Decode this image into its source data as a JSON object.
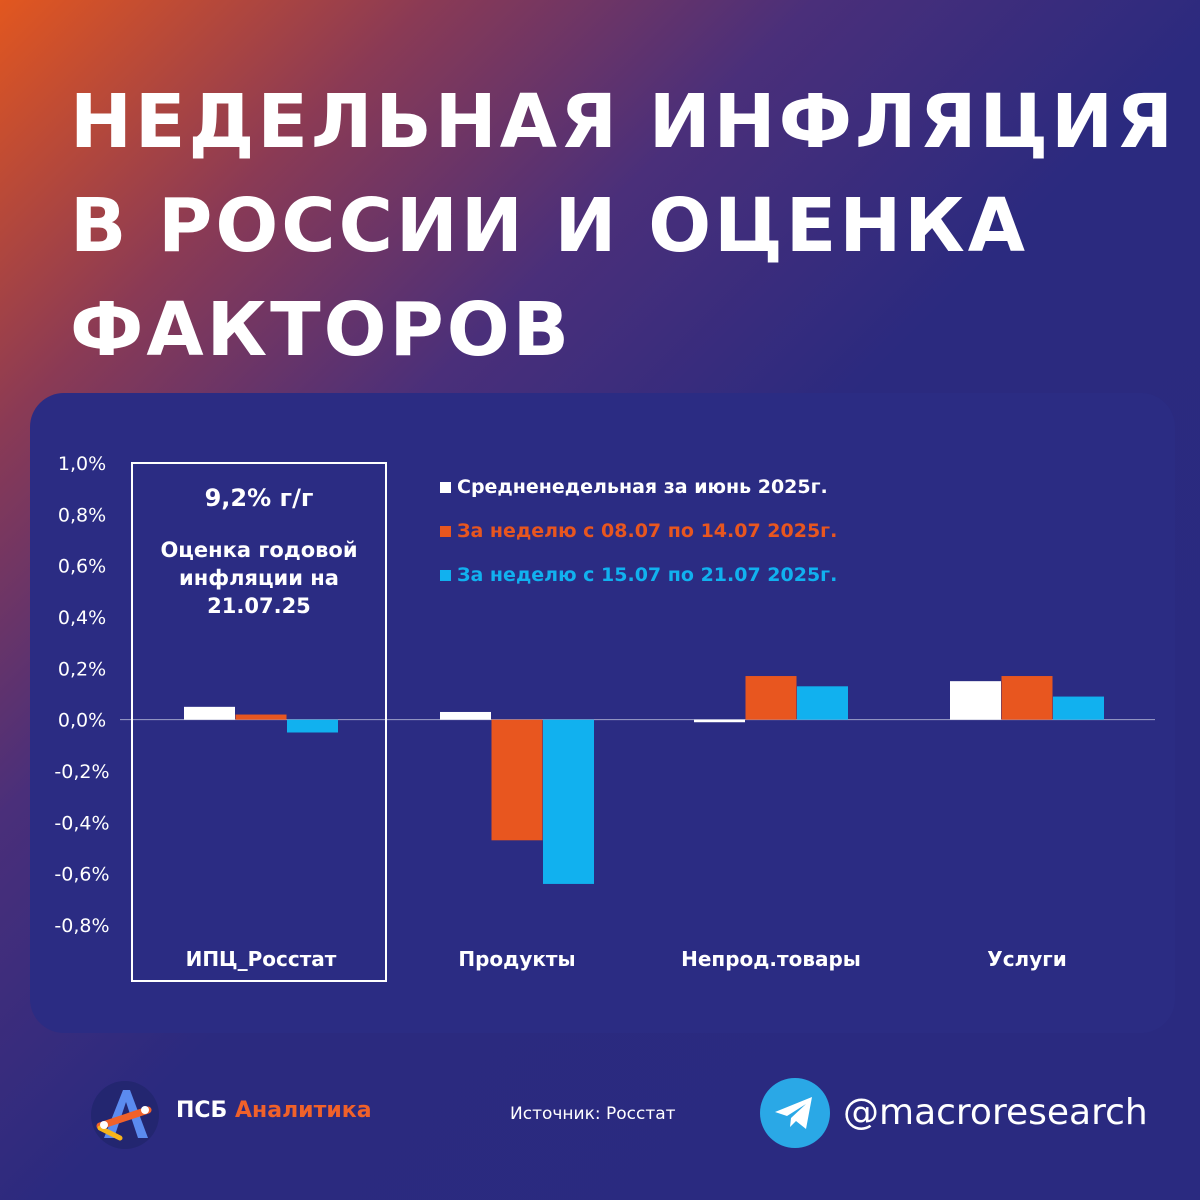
{
  "title_lines": [
    "НЕДЕЛЬНАЯ ИНФЛЯЦИЯ",
    "В РОССИИ И ОЦЕНКА",
    "ФАКТОРОВ"
  ],
  "cpi_box": {
    "annual": "9,2% г/г",
    "note_lines": [
      "Оценка годовой",
      "инфляции на",
      "21.07.25"
    ]
  },
  "colors": {
    "june": "#ffffff",
    "week1": "#e8561f",
    "week2": "#11b1ef",
    "card": "#2b2c83",
    "brand_accent": "#f0612a"
  },
  "chart_data": {
    "type": "bar",
    "categories": [
      "ИПЦ_Росстат",
      "Продукты",
      "Непрод.товары",
      "Услуги"
    ],
    "series": [
      {
        "name": "Средненедельная за июнь 2025г.",
        "values": [
          0.05,
          0.03,
          -0.01,
          0.15
        ]
      },
      {
        "name": "За неделю с 08.07 по 14.07 2025г.",
        "values": [
          0.02,
          -0.47,
          0.17,
          0.17
        ]
      },
      {
        "name": "За неделю с 15.07 по 21.07 2025г.",
        "values": [
          -0.05,
          -0.64,
          0.13,
          0.09
        ]
      }
    ],
    "ylim": [
      -0.8,
      1.0
    ],
    "yticks": [
      "1,0%",
      "0,8%",
      "0,6%",
      "0,4%",
      "0,2%",
      "0,0%",
      "-0,2%",
      "-0,4%",
      "-0,6%",
      "-0,8%"
    ],
    "ytick_values": [
      1.0,
      0.8,
      0.6,
      0.4,
      0.2,
      0.0,
      -0.2,
      -0.4,
      -0.6,
      -0.8
    ],
    "legend_position": "top-center"
  },
  "footer": {
    "brand_main": "ПСБ",
    "brand_accent": "Аналитика",
    "source": "Источник: Росстат",
    "handle": "@macroresearch"
  },
  "icons": {
    "logo": "psb-analytics-logo-icon",
    "telegram": "telegram-icon"
  }
}
